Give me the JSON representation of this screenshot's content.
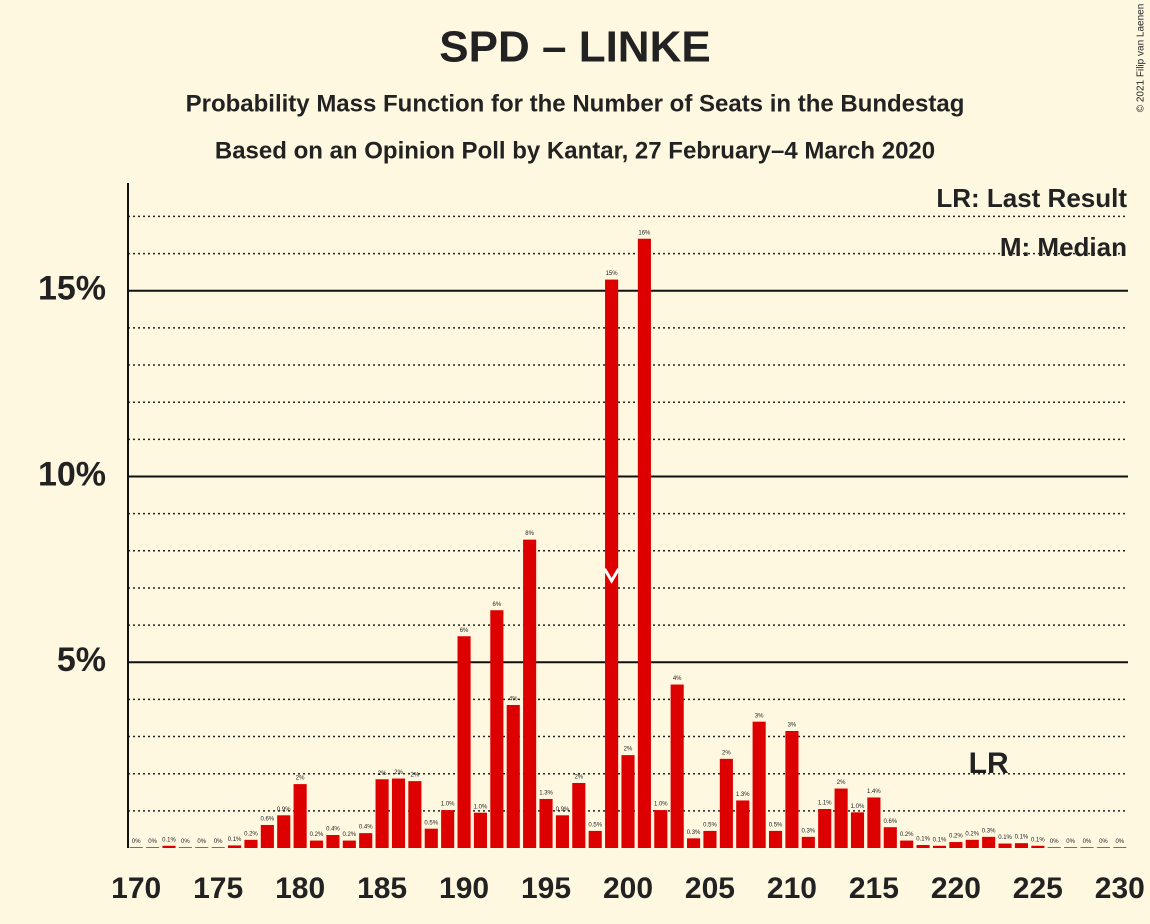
{
  "chart_data": {
    "type": "bar",
    "title": "SPD – LINKE",
    "subtitle": "Probability Mass Function for the Number of Seats in the Bundestag",
    "source": "Based on an Opinion Poll by Kantar, 27 February–4 March 2020",
    "copyright": "© 2021 Filip van Laenen",
    "legend_text": [
      "LR: Last Result",
      "M: Median"
    ],
    "x": [
      170,
      171,
      172,
      173,
      174,
      175,
      176,
      177,
      178,
      179,
      180,
      181,
      182,
      183,
      184,
      185,
      186,
      187,
      188,
      189,
      190,
      191,
      192,
      193,
      194,
      195,
      196,
      197,
      198,
      199,
      200,
      201,
      202,
      203,
      204,
      205,
      206,
      207,
      208,
      209,
      210,
      211,
      212,
      213,
      214,
      215,
      216,
      217,
      218,
      219,
      220,
      221,
      222,
      223,
      224,
      225,
      226,
      227,
      228,
      229,
      230
    ],
    "values": [
      0.02,
      0.02,
      0.06,
      0.02,
      0.02,
      0.02,
      0.07,
      0.22,
      0.62,
      0.88,
      1.72,
      0.2,
      0.35,
      0.2,
      0.4,
      1.85,
      1.87,
      1.8,
      0.52,
      1.02,
      5.7,
      0.95,
      6.4,
      3.85,
      8.3,
      1.32,
      0.88,
      1.75,
      0.46,
      15.3,
      2.5,
      16.4,
      1.02,
      4.4,
      0.26,
      0.46,
      2.4,
      1.28,
      3.4,
      0.46,
      3.15,
      0.3,
      1.05,
      1.6,
      0.96,
      1.36,
      0.56,
      0.2,
      0.08,
      0.06,
      0.16,
      0.22,
      0.3,
      0.12,
      0.13,
      0.06,
      0.02,
      0.02,
      0.02,
      0.02,
      0.02
    ],
    "value_labels": [
      "0%",
      "0%",
      "0.1%",
      "0%",
      "0%",
      "0%",
      "0.1%",
      "0.2%",
      "0.6%",
      "0.9%",
      "2%",
      "0.2%",
      "0.4%",
      "0.2%",
      "0.4%",
      "2%",
      "2%",
      "2%",
      "0.5%",
      "1.0%",
      "6%",
      "1.0%",
      "6%",
      "4%",
      "8%",
      "1.3%",
      "0.9%",
      "2%",
      "0.5%",
      "15%",
      "2%",
      "16%",
      "1.0%",
      "4%",
      "0.3%",
      "0.5%",
      "2%",
      "1.3%",
      "3%",
      "0.5%",
      "3%",
      "0.3%",
      "1.1%",
      "2%",
      "1.0%",
      "1.4%",
      "0.6%",
      "0.2%",
      "0.1%",
      "0.1%",
      "0.2%",
      "0.2%",
      "0.3%",
      "0.1%",
      "0.1%",
      "0.1%",
      "0%",
      "0%",
      "0%",
      "0%",
      "0%"
    ],
    "color": "#dd0000",
    "median": 199,
    "last_result": {
      "seat": 222,
      "label": "LR"
    },
    "xlim": [
      169.5,
      230.5
    ],
    "xticks": [
      170,
      175,
      180,
      185,
      190,
      195,
      200,
      205,
      210,
      215,
      220,
      225,
      230
    ],
    "ylim": [
      0,
      17.9
    ],
    "yticks": [
      {
        "value": 5,
        "label": "5%"
      },
      {
        "value": 10,
        "label": "10%"
      },
      {
        "value": 15,
        "label": "15%"
      }
    ],
    "minor_yticks": [
      1,
      2,
      3,
      4,
      6,
      7,
      8,
      9,
      11,
      12,
      13,
      14,
      16,
      17
    ],
    "grid": true
  }
}
